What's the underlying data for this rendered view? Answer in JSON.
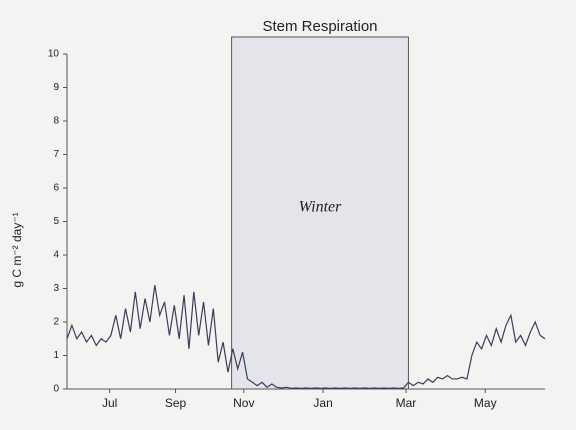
{
  "chart_data": {
    "type": "line",
    "title": "Stem Respiration",
    "y_label": "g C m⁻² day⁻¹",
    "x": [
      0,
      4,
      8,
      12,
      16,
      20,
      24,
      28,
      32,
      36,
      40,
      44,
      48,
      52,
      56,
      60,
      64,
      68,
      72,
      76,
      80,
      84,
      88,
      92,
      96,
      100,
      104,
      108,
      112,
      116,
      120,
      124,
      128,
      132,
      136,
      140,
      144,
      148,
      152,
      156,
      160,
      164,
      168,
      172,
      176,
      180,
      184,
      188,
      192,
      196,
      200,
      204,
      208,
      212,
      216,
      220,
      224,
      228,
      232,
      236,
      240,
      244,
      248,
      252,
      256,
      260,
      264,
      268,
      272,
      276,
      280,
      284,
      288,
      292,
      296,
      300,
      304,
      308,
      312,
      316,
      320,
      324,
      328,
      332,
      336,
      340,
      344,
      348,
      352,
      356,
      360,
      364,
      368,
      372,
      376,
      380,
      384,
      388,
      392
    ],
    "series": [
      {
        "name": "Stem respiration",
        "color": "#3c3c5c",
        "values": [
          1.5,
          1.9,
          1.5,
          1.7,
          1.4,
          1.6,
          1.3,
          1.5,
          1.4,
          1.6,
          2.2,
          1.5,
          2.4,
          1.7,
          2.9,
          1.8,
          2.7,
          2.0,
          3.1,
          2.2,
          2.6,
          1.6,
          2.5,
          1.5,
          2.8,
          1.2,
          2.9,
          1.6,
          2.6,
          1.3,
          2.4,
          0.8,
          1.4,
          0.5,
          1.2,
          0.6,
          1.1,
          0.3,
          0.2,
          0.1,
          0.2,
          0.05,
          0.15,
          0.05,
          0.03,
          0.05,
          0.02,
          0.03,
          0.02,
          0.03,
          0.02,
          0.03,
          0.02,
          0.03,
          0.02,
          0.03,
          0.02,
          0.03,
          0.02,
          0.03,
          0.02,
          0.03,
          0.02,
          0.03,
          0.02,
          0.03,
          0.02,
          0.03,
          0.02,
          0.03,
          0.2,
          0.1,
          0.2,
          0.15,
          0.3,
          0.2,
          0.35,
          0.3,
          0.4,
          0.3,
          0.3,
          0.35,
          0.3,
          1.0,
          1.4,
          1.2,
          1.6,
          1.3,
          1.8,
          1.4,
          1.9,
          2.2,
          1.4,
          1.6,
          1.3,
          1.7,
          2.0,
          1.6,
          1.5
        ]
      }
    ],
    "shaded_region": {
      "label": "Winter",
      "x": [
        135,
        280
      ]
    },
    "xlim": [
      0,
      392
    ],
    "xticks": [
      {
        "value": 35,
        "label": "Jul"
      },
      {
        "value": 89,
        "label": "Sep"
      },
      {
        "value": 145,
        "label": "Nov"
      },
      {
        "value": 210,
        "label": "Jan"
      },
      {
        "value": 278,
        "label": "Mar"
      },
      {
        "value": 343,
        "label": "May"
      }
    ],
    "ylim": [
      0,
      10
    ],
    "yticks": [
      0,
      1,
      2,
      3,
      4,
      5,
      6,
      7,
      8,
      9,
      10
    ]
  }
}
